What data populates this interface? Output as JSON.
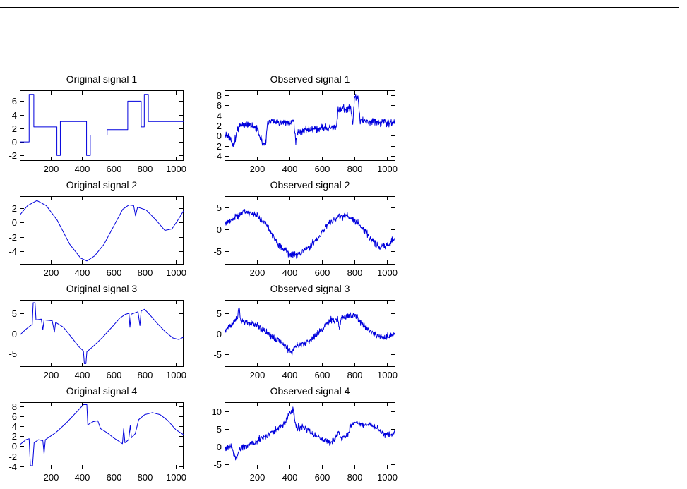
{
  "figure": {
    "background": "#ffffff",
    "axes_color": "#000000",
    "line_color": "#0000dd"
  },
  "chart_data": [
    {
      "type": "line",
      "title": "Original signal 1",
      "xlabel": "",
      "ylabel": "",
      "xlim": [
        0,
        1050
      ],
      "ylim": [
        -2.8,
        7.6
      ],
      "xticks": [
        200,
        400,
        600,
        800,
        1000
      ],
      "yticks": [
        6,
        4,
        2,
        0,
        -2
      ],
      "grid": false,
      "legend": "none",
      "line_color": "#0000dd",
      "noise_amplitude": 0,
      "series": [
        {
          "name": "source-1-step-signal",
          "points": [
            [
              0,
              0
            ],
            [
              60,
              0
            ],
            [
              60,
              7
            ],
            [
              90,
              7
            ],
            [
              90,
              2.2
            ],
            [
              238,
              2.2
            ],
            [
              238,
              -2
            ],
            [
              260,
              -2
            ],
            [
              260,
              3
            ],
            [
              428,
              3
            ],
            [
              428,
              -2
            ],
            [
              452,
              -2
            ],
            [
              452,
              1
            ],
            [
              560,
              1
            ],
            [
              560,
              1.8
            ],
            [
              692,
              1.8
            ],
            [
              692,
              6
            ],
            [
              778,
              6
            ],
            [
              778,
              2.2
            ],
            [
              798,
              2.2
            ],
            [
              798,
              7
            ],
            [
              824,
              7
            ],
            [
              824,
              3
            ],
            [
              1050,
              3
            ]
          ]
        }
      ]
    },
    {
      "type": "line",
      "title": "Observed signal 1",
      "xlabel": "",
      "ylabel": "",
      "xlim": [
        0,
        1050
      ],
      "ylim": [
        -5.0,
        9.0
      ],
      "xticks": [
        200,
        400,
        600,
        800,
        1000
      ],
      "yticks": [
        8,
        6,
        4,
        2,
        0,
        -2,
        -4
      ],
      "grid": false,
      "legend": "none",
      "line_color": "#0000dd",
      "noise_amplitude": 0.85,
      "series": [
        {
          "name": "mixed-noisy-signal-1",
          "points": [
            [
              0,
              0.3
            ],
            [
              35,
              -0.6
            ],
            [
              55,
              -2.2
            ],
            [
              75,
              0.8
            ],
            [
              95,
              2.1
            ],
            [
              150,
              2.0
            ],
            [
              200,
              1.4
            ],
            [
              235,
              -1.6
            ],
            [
              255,
              -1.2
            ],
            [
              265,
              2.9
            ],
            [
              320,
              2.8
            ],
            [
              380,
              2.6
            ],
            [
              425,
              2.6
            ],
            [
              438,
              -1.1
            ],
            [
              452,
              0.9
            ],
            [
              520,
              1.2
            ],
            [
              600,
              1.5
            ],
            [
              688,
              1.7
            ],
            [
              698,
              5.1
            ],
            [
              740,
              5.3
            ],
            [
              775,
              5.6
            ],
            [
              788,
              2.1
            ],
            [
              798,
              7.6
            ],
            [
              820,
              7.6
            ],
            [
              832,
              2.9
            ],
            [
              900,
              2.7
            ],
            [
              980,
              2.5
            ],
            [
              1050,
              2.7
            ]
          ]
        }
      ]
    },
    {
      "type": "line",
      "title": "Original signal 2",
      "xlabel": "",
      "ylabel": "",
      "xlim": [
        0,
        1050
      ],
      "ylim": [
        -5.8,
        3.6
      ],
      "xticks": [
        200,
        400,
        600,
        800,
        1000
      ],
      "yticks": [
        2,
        0,
        -2,
        -4
      ],
      "grid": false,
      "legend": "none",
      "line_color": "#0000dd",
      "noise_amplitude": 0,
      "series": [
        {
          "name": "source-2-smooth-wave",
          "points": [
            [
              0,
              1.0
            ],
            [
              50,
              2.3
            ],
            [
              110,
              3.0
            ],
            [
              170,
              2.3
            ],
            [
              240,
              0.3
            ],
            [
              320,
              -3.0
            ],
            [
              390,
              -4.9
            ],
            [
              430,
              -5.3
            ],
            [
              480,
              -4.6
            ],
            [
              540,
              -3.0
            ],
            [
              600,
              -0.6
            ],
            [
              660,
              1.8
            ],
            [
              700,
              2.4
            ],
            [
              730,
              2.3
            ],
            [
              742,
              0.9
            ],
            [
              755,
              2.1
            ],
            [
              810,
              1.7
            ],
            [
              870,
              0.4
            ],
            [
              930,
              -1.1
            ],
            [
              975,
              -0.9
            ],
            [
              1010,
              0.2
            ],
            [
              1050,
              1.6
            ]
          ]
        }
      ]
    },
    {
      "type": "line",
      "title": "Observed signal 2",
      "xlabel": "",
      "ylabel": "",
      "xlim": [
        0,
        1050
      ],
      "ylim": [
        -8.0,
        7.5
      ],
      "xticks": [
        200,
        400,
        600,
        800,
        1000
      ],
      "yticks": [
        5,
        0,
        -5
      ],
      "grid": false,
      "legend": "none",
      "line_color": "#0000dd",
      "noise_amplitude": 0.85,
      "series": [
        {
          "name": "mixed-noisy-signal-2",
          "points": [
            [
              0,
              1.0
            ],
            [
              60,
              2.8
            ],
            [
              130,
              3.9
            ],
            [
              200,
              3.1
            ],
            [
              260,
              0.9
            ],
            [
              330,
              -3.4
            ],
            [
              400,
              -5.4
            ],
            [
              450,
              -5.9
            ],
            [
              520,
              -4.1
            ],
            [
              580,
              -1.6
            ],
            [
              640,
              1.4
            ],
            [
              700,
              3.1
            ],
            [
              750,
              3.0
            ],
            [
              800,
              1.9
            ],
            [
              860,
              -0.1
            ],
            [
              920,
              -3.1
            ],
            [
              960,
              -4.1
            ],
            [
              1000,
              -3.6
            ],
            [
              1050,
              -2.1
            ]
          ]
        }
      ]
    },
    {
      "type": "line",
      "title": "Original signal 3",
      "xlabel": "",
      "ylabel": "",
      "xlim": [
        0,
        1050
      ],
      "ylim": [
        -8.2,
        8.2
      ],
      "xticks": [
        200,
        400,
        600,
        800,
        1000
      ],
      "yticks": [
        5,
        0,
        -5
      ],
      "grid": false,
      "legend": "none",
      "line_color": "#0000dd",
      "noise_amplitude": 0,
      "series": [
        {
          "name": "source-3-spiky-wave",
          "points": [
            [
              0,
              -0.4
            ],
            [
              45,
              1.2
            ],
            [
              80,
              2.2
            ],
            [
              86,
              7.5
            ],
            [
              98,
              7.5
            ],
            [
              104,
              3.3
            ],
            [
              138,
              3.5
            ],
            [
              148,
              0.9
            ],
            [
              156,
              3.3
            ],
            [
              208,
              3.1
            ],
            [
              222,
              0.3
            ],
            [
              230,
              2.7
            ],
            [
              280,
              1.5
            ],
            [
              330,
              -0.9
            ],
            [
              380,
              -3.3
            ],
            [
              408,
              -4.3
            ],
            [
              414,
              -7.4
            ],
            [
              424,
              -7.4
            ],
            [
              430,
              -4.5
            ],
            [
              470,
              -3.2
            ],
            [
              530,
              -1.0
            ],
            [
              590,
              1.5
            ],
            [
              640,
              3.7
            ],
            [
              678,
              4.7
            ],
            [
              700,
              4.9
            ],
            [
              706,
              1.5
            ],
            [
              714,
              4.7
            ],
            [
              758,
              5.3
            ],
            [
              770,
              1.9
            ],
            [
              778,
              5.5
            ],
            [
              800,
              5.9
            ],
            [
              830,
              4.7
            ],
            [
              880,
              2.5
            ],
            [
              930,
              0.5
            ],
            [
              980,
              -1.1
            ],
            [
              1020,
              -1.5
            ],
            [
              1050,
              -0.9
            ]
          ]
        }
      ]
    },
    {
      "type": "line",
      "title": "Observed signal 3",
      "xlabel": "",
      "ylabel": "",
      "xlim": [
        0,
        1050
      ],
      "ylim": [
        -8.0,
        8.2
      ],
      "xticks": [
        200,
        400,
        600,
        800,
        1000
      ],
      "yticks": [
        5,
        0,
        -5
      ],
      "grid": false,
      "legend": "none",
      "line_color": "#0000dd",
      "noise_amplitude": 0.85,
      "series": [
        {
          "name": "mixed-noisy-signal-3",
          "points": [
            [
              0,
              0.6
            ],
            [
              40,
              2.1
            ],
            [
              80,
              4.0
            ],
            [
              88,
              6.6
            ],
            [
              100,
              3.1
            ],
            [
              150,
              2.6
            ],
            [
              200,
              2.1
            ],
            [
              250,
              0.6
            ],
            [
              300,
              -0.9
            ],
            [
              360,
              -2.4
            ],
            [
              415,
              -4.6
            ],
            [
              428,
              -3.1
            ],
            [
              480,
              -2.6
            ],
            [
              540,
              -1.1
            ],
            [
              600,
              1.1
            ],
            [
              650,
              3.1
            ],
            [
              695,
              3.6
            ],
            [
              706,
              1.1
            ],
            [
              716,
              3.6
            ],
            [
              765,
              4.6
            ],
            [
              800,
              4.6
            ],
            [
              830,
              3.1
            ],
            [
              880,
              1.1
            ],
            [
              930,
              -0.4
            ],
            [
              980,
              -1.1
            ],
            [
              1020,
              -0.4
            ],
            [
              1050,
              0.1
            ]
          ]
        }
      ]
    },
    {
      "type": "line",
      "title": "Original signal 4",
      "xlabel": "",
      "ylabel": "",
      "xlim": [
        0,
        1050
      ],
      "ylim": [
        -4.6,
        8.8
      ],
      "xticks": [
        200,
        400,
        600,
        800,
        1000
      ],
      "yticks": [
        8,
        6,
        4,
        2,
        0,
        -2,
        -4
      ],
      "grid": false,
      "legend": "none",
      "line_color": "#0000dd",
      "noise_amplitude": 0,
      "series": [
        {
          "name": "source-4-ramp-wave",
          "points": [
            [
              0,
              0.3
            ],
            [
              40,
              1.3
            ],
            [
              60,
              1.5
            ],
            [
              68,
              -3.9
            ],
            [
              82,
              -3.9
            ],
            [
              92,
              0.7
            ],
            [
              120,
              1.3
            ],
            [
              148,
              1.1
            ],
            [
              156,
              -1.5
            ],
            [
              164,
              1.3
            ],
            [
              230,
              2.7
            ],
            [
              300,
              4.7
            ],
            [
              360,
              6.7
            ],
            [
              408,
              8.3
            ],
            [
              430,
              8.3
            ],
            [
              436,
              4.3
            ],
            [
              470,
              4.9
            ],
            [
              500,
              5.1
            ],
            [
              518,
              3.5
            ],
            [
              560,
              2.7
            ],
            [
              600,
              1.7
            ],
            [
              640,
              0.9
            ],
            [
              658,
              0.5
            ],
            [
              666,
              3.5
            ],
            [
              674,
              0.7
            ],
            [
              698,
              1.3
            ],
            [
              708,
              4.1
            ],
            [
              716,
              1.7
            ],
            [
              740,
              2.5
            ],
            [
              762,
              5.3
            ],
            [
              800,
              6.3
            ],
            [
              850,
              6.7
            ],
            [
              900,
              6.3
            ],
            [
              950,
              5.1
            ],
            [
              1000,
              3.3
            ],
            [
              1050,
              2.3
            ]
          ]
        }
      ]
    },
    {
      "type": "line",
      "title": "Observed signal 4",
      "xlabel": "",
      "ylabel": "",
      "xlim": [
        0,
        1050
      ],
      "ylim": [
        -6.5,
        12.5
      ],
      "xticks": [
        200,
        400,
        600,
        800,
        1000
      ],
      "yticks": [
        10,
        5,
        0,
        -5
      ],
      "grid": false,
      "legend": "none",
      "line_color": "#0000dd",
      "noise_amplitude": 1.0,
      "series": [
        {
          "name": "mixed-noisy-signal-4",
          "points": [
            [
              0,
              -0.9
            ],
            [
              40,
              0.1
            ],
            [
              68,
              -3.9
            ],
            [
              90,
              -0.9
            ],
            [
              130,
              0.1
            ],
            [
              180,
              1.1
            ],
            [
              240,
              2.6
            ],
            [
              300,
              4.1
            ],
            [
              360,
              6.1
            ],
            [
              405,
              9.4
            ],
            [
              422,
              10.6
            ],
            [
              440,
              5.1
            ],
            [
              470,
              5.6
            ],
            [
              500,
              5.1
            ],
            [
              540,
              3.6
            ],
            [
              580,
              2.6
            ],
            [
              620,
              1.6
            ],
            [
              650,
              1.1
            ],
            [
              680,
              2.1
            ],
            [
              700,
              4.6
            ],
            [
              718,
              2.1
            ],
            [
              750,
              3.1
            ],
            [
              780,
              6.1
            ],
            [
              810,
              7.1
            ],
            [
              840,
              6.1
            ],
            [
              880,
              6.4
            ],
            [
              920,
              5.6
            ],
            [
              960,
              4.1
            ],
            [
              1000,
              3.1
            ],
            [
              1030,
              3.4
            ],
            [
              1050,
              4.1
            ]
          ]
        }
      ]
    }
  ]
}
